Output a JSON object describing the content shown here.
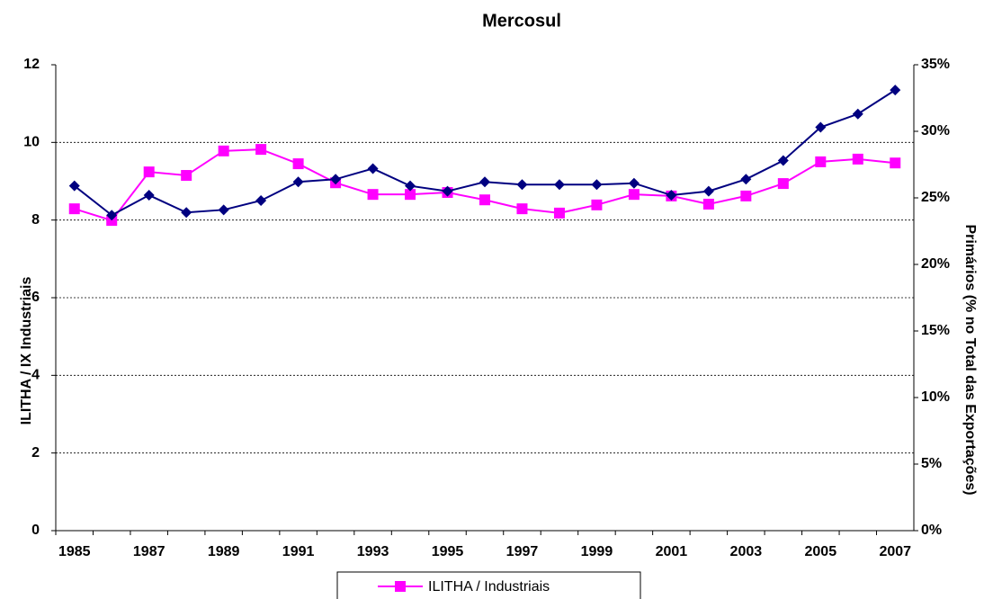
{
  "chart_data": {
    "type": "line",
    "title": "Mercosul",
    "y_label": "ILITHA / IX Industriais",
    "y2_label": "Primários (% no Total das Exportações)",
    "categories": [
      "1985",
      null,
      "1987",
      null,
      "1989",
      null,
      "1991",
      null,
      "1993",
      null,
      "1995",
      null,
      "1997",
      null,
      "1999",
      null,
      "2001",
      null,
      "2003",
      null,
      "2005",
      null,
      "2007"
    ],
    "series": [
      {
        "name": "ILITHA / Industriais",
        "color": "#ff00ff",
        "marker": "square",
        "values": [
          8.29,
          7.99,
          9.24,
          9.15,
          9.78,
          9.82,
          9.45,
          8.96,
          8.66,
          8.66,
          8.71,
          8.52,
          8.29,
          8.18,
          8.39,
          8.66,
          8.62,
          8.41,
          8.62,
          8.94,
          9.5,
          9.57,
          9.47
        ]
      },
      {
        "color": "#000080",
        "marker": "diamond",
        "axis": "y2",
        "values": [
          25.9,
          23.7,
          25.2,
          23.9,
          24.1,
          24.8,
          26.2,
          26.4,
          27.2,
          25.9,
          25.5,
          26.2,
          26.0,
          26.0,
          26.0,
          26.1,
          25.2,
          25.5,
          26.4,
          27.8,
          30.3,
          31.3,
          33.1
        ]
      }
    ],
    "ylim": [
      0,
      12
    ],
    "yticks": [
      0,
      2,
      4,
      6,
      8,
      10,
      12
    ],
    "y2lim": [
      0,
      35
    ],
    "y2ticks": [
      {
        "value": 0,
        "label": "0%"
      },
      {
        "value": 5,
        "label": "5%"
      },
      {
        "value": 10,
        "label": "10%"
      },
      {
        "value": 15,
        "label": "15%"
      },
      {
        "value": 20,
        "label": "20%"
      },
      {
        "value": 25,
        "label": "25%"
      },
      {
        "value": 30,
        "label": "30%"
      },
      {
        "value": 35,
        "label": "35%"
      }
    ],
    "grid": true,
    "legend": "bottom"
  }
}
